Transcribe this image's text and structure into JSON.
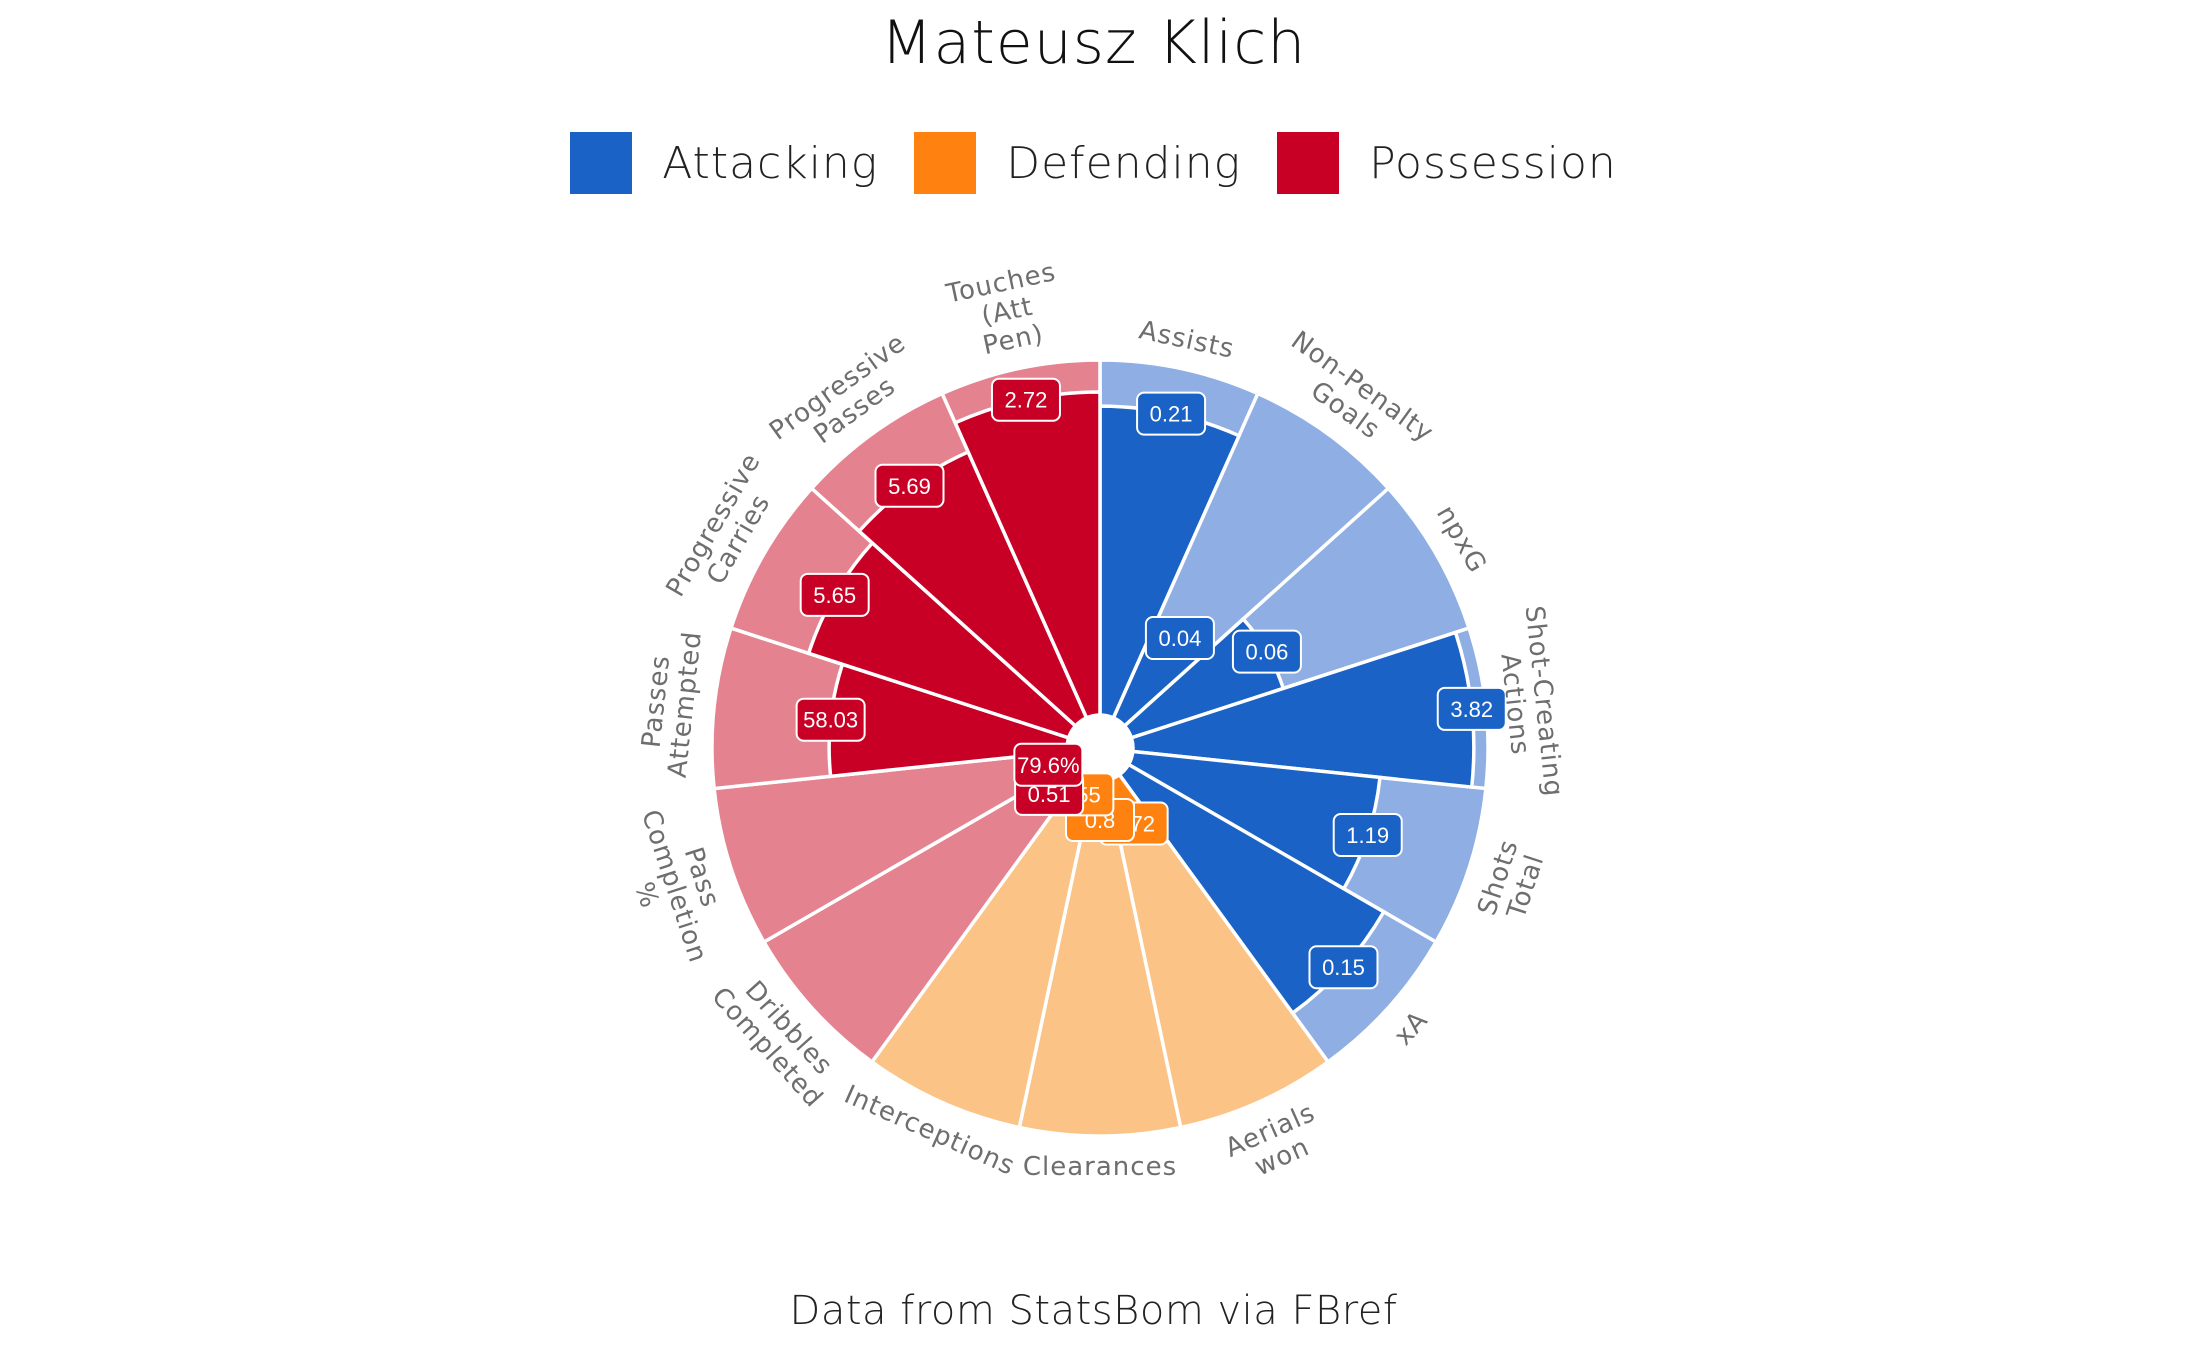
{
  "title": "Mateusz Klich",
  "caption": "Data from StatsBom via FBref",
  "legend": [
    {
      "label": "Attacking",
      "color": "#1a62c5"
    },
    {
      "label": "Defending",
      "color": "#ff8210"
    },
    {
      "label": "Possession",
      "color": "#c90026"
    }
  ],
  "chart_data": {
    "type": "pie",
    "subtype": "radar-pizza",
    "title": "Mateusz Klich",
    "background_colors": {
      "Attacking": "#8faee3",
      "Defending": "#fbc386",
      "Possession": "#e48290"
    },
    "slices": [
      {
        "label": "Assists",
        "group": "Attacking",
        "value": 0.21,
        "value_label": "0.21",
        "percentile": 87
      },
      {
        "label": "Non-Penalty Goals",
        "group": "Attacking",
        "value": 0.04,
        "value_label": "0.04",
        "percentile": 29
      },
      {
        "label": "npxG",
        "group": "Attacking",
        "value": 0.06,
        "value_label": "0.06",
        "percentile": 45
      },
      {
        "label": "Shot-Creating Actions",
        "group": "Attacking",
        "value": 3.82,
        "value_label": "3.82",
        "percentile": 96
      },
      {
        "label": "Shots Total",
        "group": "Attacking",
        "value": 1.19,
        "value_label": "1.19",
        "percentile": 70
      },
      {
        "label": "xA",
        "group": "Attacking",
        "value": 0.15,
        "value_label": "0.15",
        "percentile": 83
      },
      {
        "label": "Aerials won",
        "group": "Defending",
        "value": 0.72,
        "value_label": "0.72",
        "percentile": 14
      },
      {
        "label": "Clearances",
        "group": "Defending",
        "value": 0.8,
        "value_label": "0.8",
        "percentile": 11
      },
      {
        "label": "Interceptions",
        "group": "Defending",
        "value": 0.55,
        "value_label": "0.55",
        "percentile": 5
      },
      {
        "label": "Dribbles Completed",
        "group": "Possession",
        "value": 0.51,
        "value_label": "0.51",
        "percentile": 10
      },
      {
        "label": "Pass Completion %",
        "group": "Possession",
        "value": 79.6,
        "value_label": "79.6%",
        "percentile": 6
      },
      {
        "label": "Passes Attempted",
        "group": "Possession",
        "value": 58.03,
        "value_label": "58.03",
        "percentile": 67
      },
      {
        "label": "Progressive Carries",
        "group": "Possession",
        "value": 5.65,
        "value_label": "5.65",
        "percentile": 77
      },
      {
        "label": "Progressive Passes",
        "group": "Possession",
        "value": 5.69,
        "value_label": "5.69",
        "percentile": 82
      },
      {
        "label": "Touches (Att Pen)",
        "group": "Possession",
        "value": 2.72,
        "value_label": "2.72",
        "percentile": 91
      }
    ],
    "label_lines": [
      [
        "Assists"
      ],
      [
        "Non-Penalty",
        "Goals"
      ],
      [
        "npxG"
      ],
      [
        "Shot-Creating",
        "Actions"
      ],
      [
        "Shots",
        "Total"
      ],
      [
        "xA"
      ],
      [
        "Aerials",
        "won"
      ],
      [
        "Clearances"
      ],
      [
        "Interceptions"
      ],
      [
        "Dribbles",
        "Completed"
      ],
      [
        "Pass",
        "Completion",
        "%"
      ],
      [
        "Passes",
        "Attempted"
      ],
      [
        "Progressive",
        "Carries"
      ],
      [
        "Progressive",
        "Passes"
      ],
      [
        "Touches",
        "(Att",
        "Pen)"
      ]
    ]
  }
}
